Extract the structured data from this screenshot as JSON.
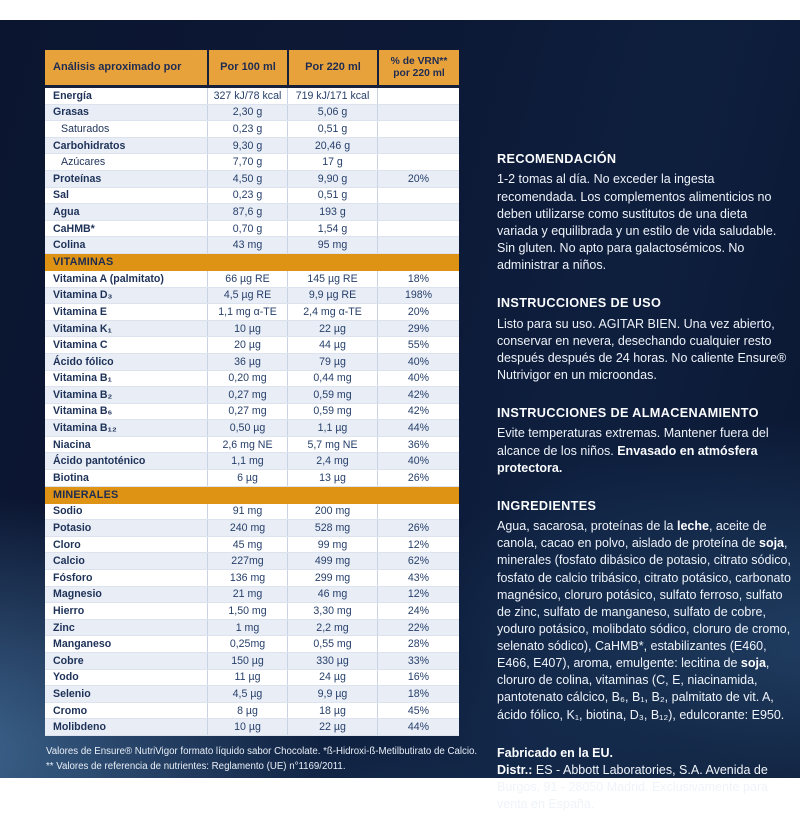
{
  "colors": {
    "panel_navy": "#0B1530",
    "header_orange": "#E8A23C",
    "section_orange": "#DE9314",
    "navy_text": "#1E2C52",
    "row_stripe": "#E8EDF6",
    "light_text": "#EFF3FA"
  },
  "table": {
    "header": [
      "Análisis aproximado por",
      "Por 100 ml",
      "Por 220 ml",
      "% de VRN**\npor 220 ml"
    ],
    "sections": [
      {
        "title": null,
        "rows": [
          {
            "label": "Energía",
            "indent": false,
            "v100": "327 kJ/78 kcal",
            "v220": "719 kJ/171 kcal",
            "vrn": ""
          },
          {
            "label": "Grasas",
            "indent": false,
            "v100": "2,30 g",
            "v220": "5,06 g",
            "vrn": ""
          },
          {
            "label": "Saturados",
            "indent": true,
            "v100": "0,23 g",
            "v220": "0,51 g",
            "vrn": ""
          },
          {
            "label": "Carbohidratos",
            "indent": false,
            "v100": "9,30 g",
            "v220": "20,46 g",
            "vrn": ""
          },
          {
            "label": "Azúcares",
            "indent": true,
            "v100": "7,70 g",
            "v220": "17 g",
            "vrn": ""
          },
          {
            "label": "Proteínas",
            "indent": false,
            "v100": "4,50 g",
            "v220": "9,90 g",
            "vrn": "20%"
          },
          {
            "label": "Sal",
            "indent": false,
            "v100": "0,23 g",
            "v220": "0,51 g",
            "vrn": ""
          },
          {
            "label": "Agua",
            "indent": false,
            "v100": "87,6 g",
            "v220": "193 g",
            "vrn": ""
          },
          {
            "label": "CaHMB*",
            "indent": false,
            "v100": "0,70 g",
            "v220": "1,54 g",
            "vrn": ""
          },
          {
            "label": "Colina",
            "indent": false,
            "v100": "43 mg",
            "v220": "95 mg",
            "vrn": ""
          }
        ]
      },
      {
        "title": "VITAMINAS",
        "rows": [
          {
            "label": "Vitamina A (palmitato)",
            "indent": false,
            "v100": "66 µg RE",
            "v220": "145 µg RE",
            "vrn": "18%"
          },
          {
            "label": "Vitamina D₃",
            "indent": false,
            "v100": "4,5 µg RE",
            "v220": "9,9 µg RE",
            "vrn": "198%"
          },
          {
            "label": "Vitamina E",
            "indent": false,
            "v100": "1,1 mg α-TE",
            "v220": "2,4 mg α-TE",
            "vrn": "20%"
          },
          {
            "label": "Vitamina K₁",
            "indent": false,
            "v100": "10 µg",
            "v220": "22 µg",
            "vrn": "29%"
          },
          {
            "label": "Vitamina C",
            "indent": false,
            "v100": "20 µg",
            "v220": "44 µg",
            "vrn": "55%"
          },
          {
            "label": "Ácido fólico",
            "indent": false,
            "v100": "36 µg",
            "v220": "79 µg",
            "vrn": "40%"
          },
          {
            "label": "Vitamina B₁",
            "indent": false,
            "v100": "0,20 mg",
            "v220": "0,44 mg",
            "vrn": "40%"
          },
          {
            "label": "Vitamina B₂",
            "indent": false,
            "v100": "0,27 mg",
            "v220": "0,59 mg",
            "vrn": "42%"
          },
          {
            "label": "Vitamina B₆",
            "indent": false,
            "v100": "0,27 mg",
            "v220": "0,59 mg",
            "vrn": "42%"
          },
          {
            "label": "Vitamina B₁₂",
            "indent": false,
            "v100": "0,50 µg",
            "v220": "1,1 µg",
            "vrn": "44%"
          },
          {
            "label": "Niacina",
            "indent": false,
            "v100": "2,6 mg NE",
            "v220": "5,7 mg NE",
            "vrn": "36%"
          },
          {
            "label": "Ácido pantoténico",
            "indent": false,
            "v100": "1,1 mg",
            "v220": "2,4 mg",
            "vrn": "40%"
          },
          {
            "label": "Biotina",
            "indent": false,
            "v100": "6 µg",
            "v220": "13 µg",
            "vrn": "26%"
          }
        ]
      },
      {
        "title": "MINERALES",
        "rows": [
          {
            "label": "Sodio",
            "indent": false,
            "v100": "91 mg",
            "v220": "200 mg",
            "vrn": ""
          },
          {
            "label": "Potasio",
            "indent": false,
            "v100": "240 mg",
            "v220": "528 mg",
            "vrn": "26%"
          },
          {
            "label": "Cloro",
            "indent": false,
            "v100": "45 mg",
            "v220": "99 mg",
            "vrn": "12%"
          },
          {
            "label": "Calcio",
            "indent": false,
            "v100": "227mg",
            "v220": "499 mg",
            "vrn": "62%"
          },
          {
            "label": "Fósforo",
            "indent": false,
            "v100": "136 mg",
            "v220": "299 mg",
            "vrn": "43%"
          },
          {
            "label": "Magnesio",
            "indent": false,
            "v100": "21 mg",
            "v220": "46 mg",
            "vrn": "12%"
          },
          {
            "label": "Hierro",
            "indent": false,
            "v100": "1,50 mg",
            "v220": "3,30 mg",
            "vrn": "24%"
          },
          {
            "label": "Zinc",
            "indent": false,
            "v100": "1 mg",
            "v220": "2,2 mg",
            "vrn": "22%"
          },
          {
            "label": "Manganeso",
            "indent": false,
            "v100": "0,25mg",
            "v220": "0,55 mg",
            "vrn": "28%"
          },
          {
            "label": "Cobre",
            "indent": false,
            "v100": "150 µg",
            "v220": "330 µg",
            "vrn": "33%"
          },
          {
            "label": "Yodo",
            "indent": false,
            "v100": "11 µg",
            "v220": "24 µg",
            "vrn": "16%"
          },
          {
            "label": "Selenio",
            "indent": false,
            "v100": "4,5 µg",
            "v220": "9,9 µg",
            "vrn": "18%"
          },
          {
            "label": "Cromo",
            "indent": false,
            "v100": "8 µg",
            "v220": "18 µg",
            "vrn": "45%"
          },
          {
            "label": "Molibdeno",
            "indent": false,
            "v100": "10 µg",
            "v220": "22 µg",
            "vrn": "44%"
          }
        ]
      }
    ],
    "footnotes": [
      "Valores de Ensure® NutriVigor formato líquido sabor Chocolate. *ß-Hidroxi-ß-Metilbutirato de Calcio.",
      "** Valores de referencia de nutrientes: Reglamento (UE) n°1169/2011."
    ]
  },
  "right_panel": {
    "sections": [
      {
        "heading": "RECOMENDACIÓN",
        "paragraphs": [
          [
            {
              "t": "1-2 tomas al día. No exceder la ingesta recomendada. Los complementos alimenticios no deben utilizarse como sustitutos de una dieta variada y equilibrada y un estilo de vida saludable. Sin gluten. No apto para galactosémicos. No administrar a niños.",
              "b": false
            }
          ]
        ]
      },
      {
        "heading": "INSTRUCCIONES DE USO",
        "paragraphs": [
          [
            {
              "t": "Listo para su uso. AGITAR BIEN. Una vez abierto, conservar en nevera, desechando cualquier resto después después de 24 horas. No caliente Ensure® Nutrivigor en un microondas.",
              "b": false
            }
          ]
        ]
      },
      {
        "heading": "INSTRUCCIONES DE ALMACENAMIENTO",
        "paragraphs": [
          [
            {
              "t": "Evite temperaturas extremas. Mantener fuera del alcance de los niños. ",
              "b": false
            },
            {
              "t": "Envasado en atmósfera protectora.",
              "b": true
            }
          ]
        ]
      },
      {
        "heading": "INGREDIENTES",
        "paragraphs": [
          [
            {
              "t": "Agua, sacarosa, proteínas de la ",
              "b": false
            },
            {
              "t": "leche",
              "b": true
            },
            {
              "t": ", aceite de canola, cacao en polvo, aislado de proteína de ",
              "b": false
            },
            {
              "t": "soja",
              "b": true
            },
            {
              "t": ", minerales (fosfato dibásico de potasio, citrato sódico, fosfato de calcio tribásico, citrato potásico, carbonato magnésico, cloruro potásico, sulfato ferroso, sulfato de zinc, sulfato de manganeso, sulfato de cobre, yoduro potásico, molibdato sódico, cloruro de cromo, selenato sódico), CaHMB*, estabilizantes (E460, E466, E407), aroma, emulgente: lecitina de ",
              "b": false
            },
            {
              "t": "soja",
              "b": true
            },
            {
              "t": ", cloruro de colina, vitaminas (C, E, niacinamida, pantotenato cálcico, B₆, B₁, B₂, palmitato de vit. A, ácido fólico, K₁, biotina, D₃, B₁₂), edulcorante: E950.",
              "b": false
            }
          ]
        ]
      },
      {
        "heading": null,
        "paragraphs": [
          [
            {
              "t": "Fabricado en la EU.",
              "b": true
            }
          ],
          [
            {
              "t": "Distr.:",
              "b": true
            },
            {
              "t": " ES - Abbott Laboratories, S.A. Avenida de Burgos, 91 - 28050 Madrid. Exclusivamente para venta en España.",
              "b": false
            }
          ]
        ]
      }
    ]
  }
}
